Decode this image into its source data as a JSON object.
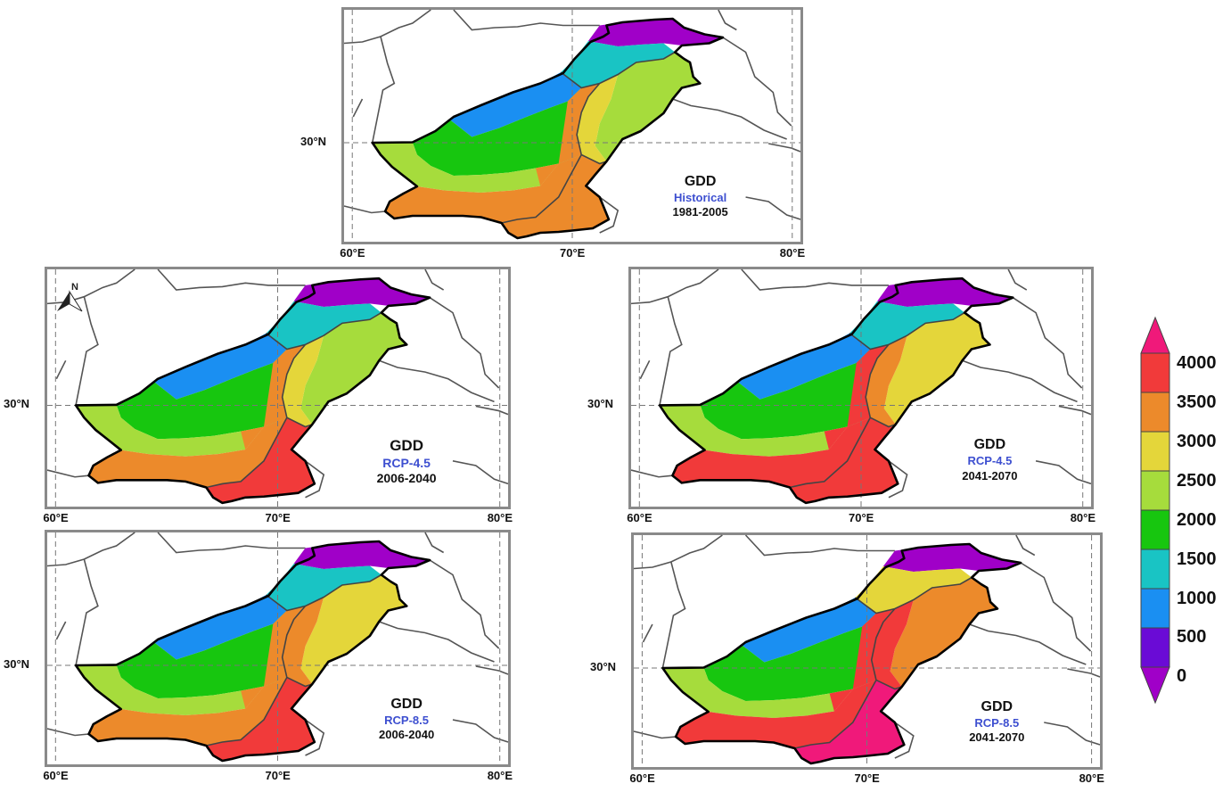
{
  "colorbar": {
    "labels": [
      "4000",
      "3500",
      "3000",
      "2500",
      "2000",
      "1500",
      "1000",
      "500",
      "0"
    ],
    "colors": [
      "#f13a3a",
      "#ec8a2b",
      "#e4d63a",
      "#a6dc3c",
      "#17c60f",
      "#19c4c4",
      "#1a8ff2",
      "#6a0bd6",
      "#a000c8"
    ],
    "over_color": "#f0197a",
    "under_color": "#a000c8"
  },
  "panels": [
    {
      "title": "GDD",
      "scenario": "Historical",
      "period": "1981-2005",
      "lat_tick": "30°N",
      "lon_ticks": [
        "60°E",
        "70°E",
        "80°E"
      ],
      "north_arrow": false
    },
    {
      "title": "GDD",
      "scenario": "RCP-4.5",
      "period": "2006-2040",
      "lat_tick": "30°N",
      "lon_ticks": [
        "60°E",
        "70°E",
        "80°E"
      ],
      "north_arrow": true,
      "north_label": "N"
    },
    {
      "title": "GDD",
      "scenario": "RCP-4.5",
      "period": "2041-2070",
      "lat_tick": "30°N",
      "lon_ticks": [
        "60°E",
        "70°E",
        "80°E"
      ],
      "north_arrow": false
    },
    {
      "title": "GDD",
      "scenario": "RCP-8.5",
      "period": "2006-2040",
      "lat_tick": "30°N",
      "lon_ticks": [
        "60°E",
        "70°E",
        "80°E"
      ],
      "north_arrow": false
    },
    {
      "title": "GDD",
      "scenario": "RCP-8.5",
      "period": "2041-2070",
      "lat_tick": "30°N",
      "lon_ticks": [
        "60°E",
        "70°E",
        "80°E"
      ],
      "north_arrow": false
    }
  ],
  "zones": {
    "historical": [
      "#a000c8",
      "#19c4c4",
      "#a6dc3c",
      "#e4d63a",
      "#1a8ff2",
      "#17c60f",
      "#a6dc3c",
      "#ec8a2b",
      "#ec8a2b",
      "#ec8a2b"
    ],
    "rcp45_near": [
      "#a000c8",
      "#19c4c4",
      "#a6dc3c",
      "#e4d63a",
      "#1a8ff2",
      "#17c60f",
      "#a6dc3c",
      "#ec8a2b",
      "#f13a3a",
      "#ec8a2b"
    ],
    "rcp45_far": [
      "#a000c8",
      "#19c4c4",
      "#e4d63a",
      "#ec8a2b",
      "#1a8ff2",
      "#17c60f",
      "#a6dc3c",
      "#f13a3a",
      "#f13a3a",
      "#f13a3a"
    ],
    "rcp85_near": [
      "#a000c8",
      "#19c4c4",
      "#e4d63a",
      "#ec8a2b",
      "#1a8ff2",
      "#17c60f",
      "#a6dc3c",
      "#ec8a2b",
      "#f13a3a",
      "#ec8a2b"
    ],
    "rcp85_far": [
      "#a000c8",
      "#e4d63a",
      "#ec8a2b",
      "#f13a3a",
      "#1a8ff2",
      "#17c60f",
      "#a6dc3c",
      "#f13a3a",
      "#f0197a",
      "#f13a3a"
    ]
  },
  "panel_zones": [
    "historical",
    "rcp45_near",
    "rcp45_far",
    "rcp85_near",
    "rcp85_far"
  ]
}
